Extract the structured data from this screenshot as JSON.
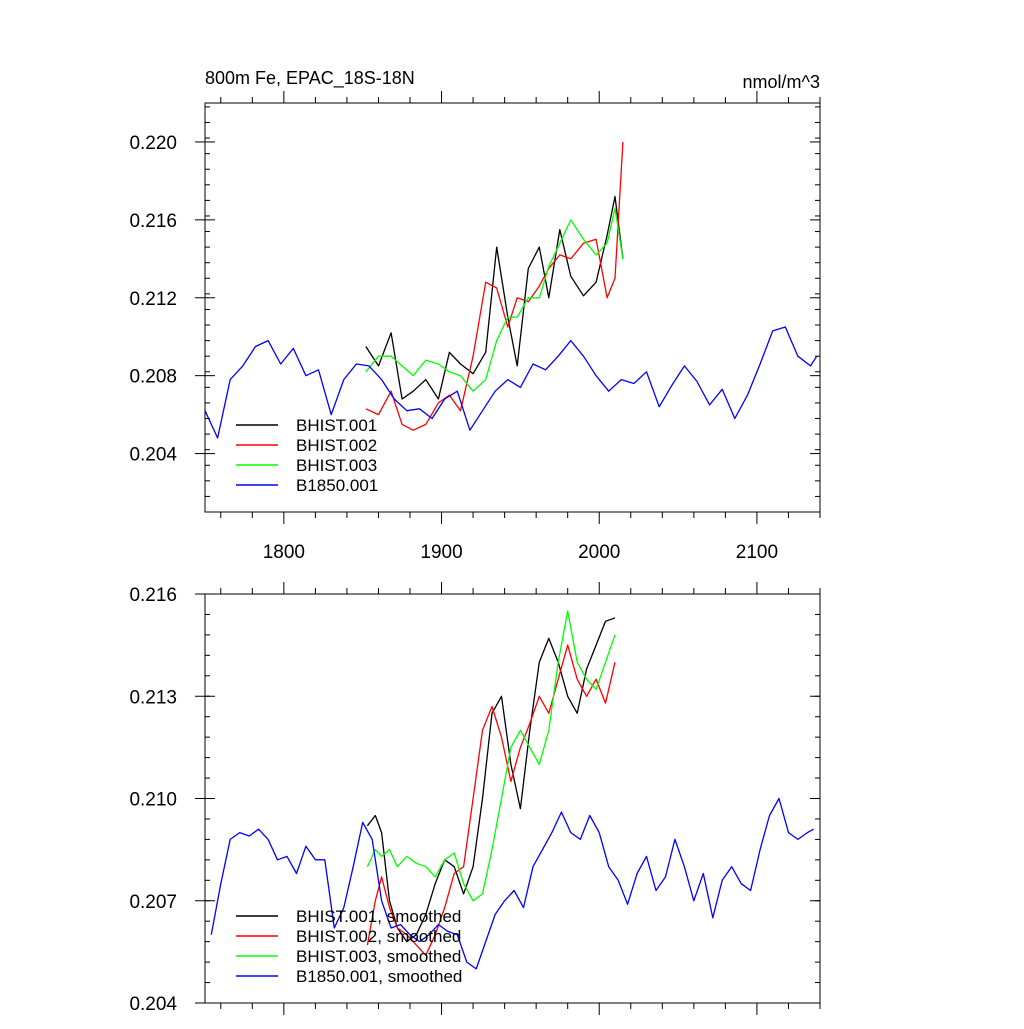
{
  "chart_data": [
    {
      "type": "line",
      "title": "800m Fe, EPAC_18S-18N",
      "units": "nmol/m^3",
      "xlim": [
        1750,
        2140
      ],
      "ylim": [
        0.201,
        0.222
      ],
      "xticks": [
        1800,
        1900,
        2000,
        2100
      ],
      "xtick_labels": [
        "1800",
        "1900",
        "2000",
        "2100"
      ],
      "yticks": [
        0.204,
        0.208,
        0.212,
        0.216,
        0.22
      ],
      "ytick_labels": [
        "0.204",
        "0.208",
        "0.212",
        "0.216",
        "0.220"
      ],
      "legend_position": "bottom-left",
      "series": [
        {
          "name": "BHIST.001",
          "color": "#000000",
          "x": [
            1852,
            1860,
            1868,
            1875,
            1882,
            1890,
            1898,
            1905,
            1912,
            1920,
            1928,
            1935,
            1942,
            1948,
            1955,
            1962,
            1968,
            1975,
            1982,
            1990,
            1998,
            2005,
            2010,
            2015
          ],
          "y": [
            0.2095,
            0.2085,
            0.2102,
            0.2068,
            0.2072,
            0.2078,
            0.2068,
            0.2092,
            0.2086,
            0.2081,
            0.2092,
            0.2146,
            0.211,
            0.2085,
            0.2135,
            0.2146,
            0.212,
            0.2155,
            0.2131,
            0.2121,
            0.2128,
            0.2152,
            0.2172,
            0.214
          ]
        },
        {
          "name": "BHIST.002",
          "color": "#ff0000",
          "x": [
            1852,
            1860,
            1868,
            1875,
            1882,
            1890,
            1898,
            1905,
            1912,
            1920,
            1928,
            1935,
            1942,
            1948,
            1955,
            1962,
            1968,
            1975,
            1982,
            1990,
            1998,
            2005,
            2010,
            2015
          ],
          "y": [
            0.2063,
            0.206,
            0.2072,
            0.2055,
            0.2052,
            0.2055,
            0.2066,
            0.207,
            0.2062,
            0.209,
            0.2128,
            0.2125,
            0.2105,
            0.212,
            0.2118,
            0.2126,
            0.2135,
            0.2142,
            0.214,
            0.2148,
            0.215,
            0.212,
            0.213,
            0.22
          ]
        },
        {
          "name": "BHIST.003",
          "color": "#00ff00",
          "x": [
            1852,
            1860,
            1868,
            1875,
            1882,
            1890,
            1898,
            1905,
            1912,
            1920,
            1928,
            1935,
            1942,
            1948,
            1955,
            1962,
            1968,
            1975,
            1982,
            1990,
            1998,
            2005,
            2010,
            2015
          ],
          "y": [
            0.2082,
            0.209,
            0.209,
            0.2085,
            0.208,
            0.2088,
            0.2086,
            0.2082,
            0.208,
            0.2072,
            0.2078,
            0.2098,
            0.211,
            0.211,
            0.212,
            0.212,
            0.2136,
            0.2148,
            0.216,
            0.215,
            0.2142,
            0.2148,
            0.2166,
            0.214
          ]
        },
        {
          "name": "B1850.001",
          "color": "#0000ff",
          "x": [
            1750,
            1758,
            1766,
            1774,
            1782,
            1790,
            1798,
            1806,
            1814,
            1822,
            1830,
            1838,
            1846,
            1854,
            1862,
            1870,
            1878,
            1886,
            1894,
            1902,
            1910,
            1918,
            1926,
            1934,
            1942,
            1950,
            1958,
            1966,
            1974,
            1982,
            1990,
            1998,
            2006,
            2014,
            2022,
            2030,
            2038,
            2046,
            2054,
            2062,
            2070,
            2078,
            2086,
            2094,
            2102,
            2110,
            2118,
            2126,
            2134,
            2138
          ],
          "y": [
            0.2062,
            0.2048,
            0.2078,
            0.2085,
            0.2095,
            0.2098,
            0.2086,
            0.2094,
            0.208,
            0.2083,
            0.206,
            0.2078,
            0.2086,
            0.2085,
            0.2078,
            0.2068,
            0.2062,
            0.2063,
            0.2058,
            0.2068,
            0.2072,
            0.2052,
            0.2062,
            0.2072,
            0.2078,
            0.2074,
            0.2086,
            0.2083,
            0.209,
            0.2098,
            0.209,
            0.208,
            0.2072,
            0.2078,
            0.2076,
            0.2082,
            0.2064,
            0.2075,
            0.2085,
            0.2077,
            0.2065,
            0.2073,
            0.2058,
            0.207,
            0.2086,
            0.2103,
            0.2105,
            0.209,
            0.2085,
            0.209
          ]
        }
      ]
    },
    {
      "type": "line",
      "title": "",
      "xlim": [
        1750,
        2140
      ],
      "ylim": [
        0.204,
        0.216
      ],
      "xticks": [
        1800,
        1900,
        2000,
        2100
      ],
      "yticks": [
        0.204,
        0.207,
        0.21,
        0.213,
        0.216
      ],
      "ytick_labels": [
        "0.204",
        "0.207",
        "0.210",
        "0.213",
        "0.216"
      ],
      "legend_position": "bottom-left",
      "series": [
        {
          "name": "BHIST.001, smoothed",
          "color": "#000000",
          "x": [
            1853,
            1858,
            1862,
            1867,
            1872,
            1878,
            1884,
            1890,
            1896,
            1902,
            1908,
            1914,
            1920,
            1926,
            1932,
            1938,
            1944,
            1950,
            1956,
            1962,
            1968,
            1974,
            1980,
            1986,
            1992,
            1998,
            2004,
            2010
          ],
          "y": [
            0.2092,
            0.2095,
            0.209,
            0.207,
            0.2062,
            0.2058,
            0.206,
            0.2066,
            0.2075,
            0.2082,
            0.208,
            0.2072,
            0.208,
            0.21,
            0.2125,
            0.213,
            0.211,
            0.2097,
            0.212,
            0.214,
            0.2147,
            0.214,
            0.213,
            0.2125,
            0.2138,
            0.2145,
            0.2152,
            0.2153
          ]
        },
        {
          "name": "BHIST.002, smoothed",
          "color": "#ff0000",
          "x": [
            1853,
            1858,
            1862,
            1867,
            1872,
            1878,
            1884,
            1890,
            1896,
            1902,
            1908,
            1914,
            1920,
            1926,
            1932,
            1938,
            1944,
            1950,
            1956,
            1962,
            1968,
            1974,
            1980,
            1986,
            1992,
            1998,
            2004,
            2010
          ],
          "y": [
            0.2057,
            0.207,
            0.2077,
            0.2068,
            0.2062,
            0.206,
            0.2057,
            0.2054,
            0.206,
            0.2068,
            0.2078,
            0.208,
            0.21,
            0.212,
            0.2127,
            0.2118,
            0.2105,
            0.2115,
            0.2122,
            0.213,
            0.2125,
            0.2135,
            0.2145,
            0.2135,
            0.213,
            0.2135,
            0.2128,
            0.214
          ]
        },
        {
          "name": "BHIST.003, smoothed",
          "color": "#00ff00",
          "x": [
            1853,
            1858,
            1862,
            1867,
            1872,
            1878,
            1884,
            1890,
            1896,
            1902,
            1908,
            1914,
            1920,
            1926,
            1932,
            1938,
            1944,
            1950,
            1956,
            1962,
            1968,
            1974,
            1980,
            1986,
            1992,
            1998,
            2004,
            2010
          ],
          "y": [
            0.208,
            0.2085,
            0.2083,
            0.2085,
            0.208,
            0.2083,
            0.2081,
            0.208,
            0.2077,
            0.2082,
            0.2084,
            0.2075,
            0.207,
            0.2072,
            0.2085,
            0.21,
            0.2115,
            0.212,
            0.2115,
            0.211,
            0.212,
            0.214,
            0.2155,
            0.214,
            0.2135,
            0.2132,
            0.214,
            0.2148
          ]
        },
        {
          "name": "B1850.001, smoothed",
          "color": "#0000ff",
          "x": [
            1754,
            1760,
            1766,
            1772,
            1778,
            1784,
            1790,
            1796,
            1802,
            1808,
            1814,
            1820,
            1826,
            1832,
            1838,
            1844,
            1850,
            1856,
            1862,
            1868,
            1874,
            1880,
            1886,
            1892,
            1898,
            1904,
            1910,
            1916,
            1922,
            1928,
            1934,
            1940,
            1946,
            1952,
            1958,
            1964,
            1970,
            1976,
            1982,
            1988,
            1994,
            2000,
            2006,
            2012,
            2018,
            2024,
            2030,
            2036,
            2042,
            2048,
            2054,
            2060,
            2066,
            2072,
            2078,
            2084,
            2090,
            2096,
            2102,
            2108,
            2114,
            2120,
            2126,
            2132,
            2136
          ],
          "y": [
            0.206,
            0.2075,
            0.2088,
            0.209,
            0.2089,
            0.2091,
            0.2088,
            0.2082,
            0.2083,
            0.2078,
            0.2086,
            0.2082,
            0.2082,
            0.2062,
            0.2068,
            0.208,
            0.2093,
            0.2088,
            0.207,
            0.2062,
            0.2063,
            0.206,
            0.2058,
            0.206,
            0.2063,
            0.2061,
            0.206,
            0.2052,
            0.205,
            0.2058,
            0.2066,
            0.207,
            0.2073,
            0.2068,
            0.208,
            0.2085,
            0.209,
            0.2096,
            0.209,
            0.2088,
            0.2095,
            0.209,
            0.208,
            0.2076,
            0.2069,
            0.2078,
            0.2083,
            0.2073,
            0.2077,
            0.2088,
            0.208,
            0.207,
            0.2078,
            0.2065,
            0.2076,
            0.208,
            0.2075,
            0.2073,
            0.2085,
            0.2095,
            0.21,
            0.209,
            0.2088,
            0.209,
            0.2091
          ]
        }
      ]
    }
  ]
}
